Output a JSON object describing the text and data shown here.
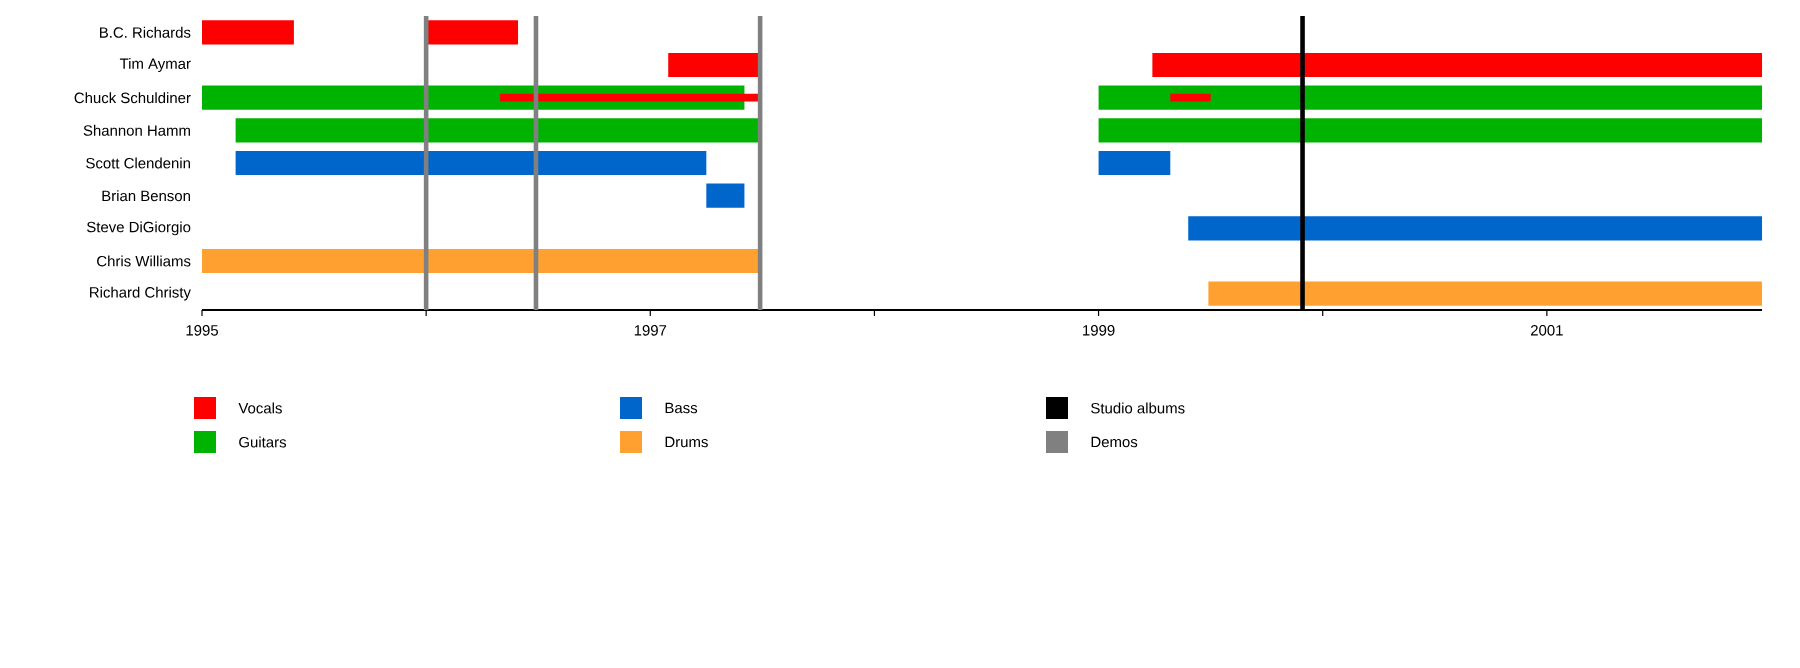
{
  "chart_data": {
    "type": "bar",
    "orientation": "horizontal",
    "categories": [
      "B.C. Richards",
      "Tim Aymar",
      "Chuck Schuldiner",
      "Shannon Hamm",
      "Scott Clendenin",
      "Brian Benson",
      "Steve DiGiorgio",
      "Chris Williams",
      "Richard Christy"
    ],
    "series": [
      {
        "name": "Vocals",
        "color": "#ff0000",
        "base": [
          1995,
          1997.08,
          1996.33,
          null,
          null,
          null,
          null,
          null,
          null
        ],
        "values": [
          0.41,
          0.41,
          1.16,
          null,
          null,
          null,
          null,
          null,
          null
        ]
      },
      {
        "color": "#ff0000",
        "base": [
          1996,
          1999.24,
          1999.32,
          null,
          null,
          null,
          null,
          null,
          null
        ],
        "values": [
          0.41,
          2.72,
          0.18,
          null,
          null,
          null,
          null,
          null,
          null
        ]
      },
      {
        "name": "Guitars",
        "color": "#00b300",
        "base": [
          null,
          null,
          1995,
          1995.15,
          null,
          null,
          null,
          null,
          null
        ],
        "values": [
          null,
          null,
          2.42,
          2.34,
          null,
          null,
          null,
          null,
          null
        ]
      },
      {
        "color": "#00b300",
        "base": [
          null,
          null,
          1999,
          1999,
          null,
          null,
          null,
          null,
          null
        ],
        "values": [
          null,
          null,
          2.96,
          2.96,
          null,
          null,
          null,
          null,
          null
        ]
      },
      {
        "name": "Bass",
        "color": "#0066cc",
        "base": [
          null,
          null,
          null,
          null,
          1995.15,
          1997.25,
          1999.4,
          null,
          null
        ],
        "values": [
          null,
          null,
          null,
          null,
          2.1,
          0.17,
          2.56,
          null,
          null
        ]
      },
      {
        "color": "#0066cc",
        "base": [
          null,
          null,
          null,
          null,
          1999,
          null,
          null,
          null,
          null
        ],
        "values": [
          null,
          null,
          null,
          null,
          0.32,
          null,
          null,
          null,
          null
        ]
      },
      {
        "name": "Drums",
        "color": "#ffa030",
        "base": [
          null,
          null,
          null,
          null,
          null,
          null,
          null,
          1995,
          1999.49
        ],
        "values": [
          null,
          null,
          null,
          null,
          null,
          null,
          null,
          2.49,
          2.47
        ]
      }
    ],
    "xlim": [
      1995,
      2001.96
    ],
    "xticks": [
      1995,
      {
        "value": 1996,
        "label": null
      },
      1997,
      {
        "value": 1998,
        "label": null
      },
      1999,
      {
        "value": 2000,
        "label": null
      },
      2001
    ],
    "ref_lines": [
      {
        "axis": "x",
        "value": 1999.91,
        "label": "Studio albums",
        "color": "#000000"
      },
      {
        "axis": "x",
        "value": 1996,
        "label": "Demos",
        "color": "#808080"
      },
      {
        "axis": "x",
        "value": 1996.49,
        "color": "#808080"
      },
      {
        "axis": "x",
        "value": 1997.49,
        "color": "#808080"
      }
    ],
    "legend": "bottom"
  }
}
